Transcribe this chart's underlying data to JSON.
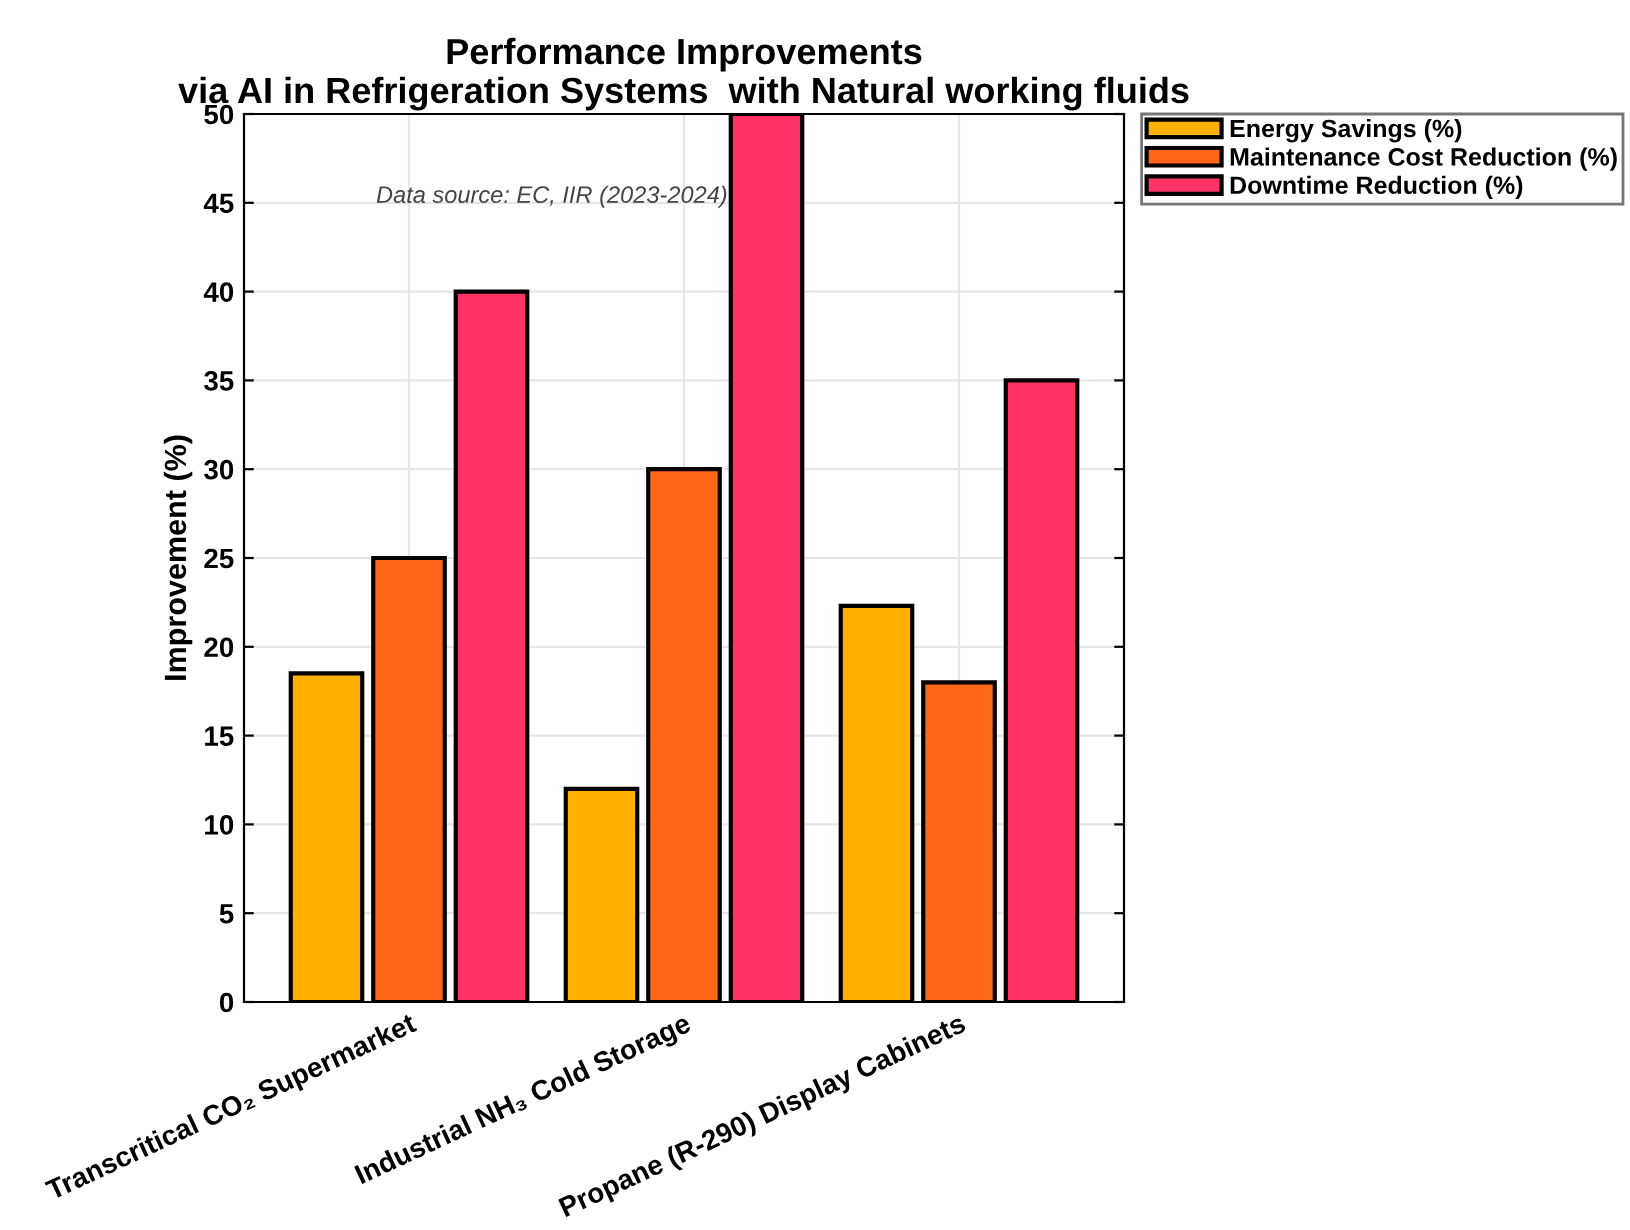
{
  "chart_data": {
    "type": "bar",
    "title": "Performance Improvements\nvia AI in Refrigeration Systems  with Natural working fluids",
    "ylabel": "Improvement (%)",
    "categories": [
      "Transcritical CO₂ Supermarket",
      "Industrial NH₃ Cold Storage",
      "Propane (R-290) Display Cabinets"
    ],
    "series": [
      {
        "name": "Energy Savings (%)",
        "color": "#ffb000",
        "values": [
          18.5,
          12,
          22.3
        ]
      },
      {
        "name": "Maintenance Cost Reduction (%)",
        "color": "#ff6718",
        "values": [
          25,
          30,
          18
        ]
      },
      {
        "name": "Downtime Reduction (%)",
        "color": "#ff3366",
        "values": [
          40,
          50,
          35
        ]
      }
    ],
    "ylim": [
      0,
      50
    ],
    "yticks": [
      0,
      5,
      10,
      15,
      20,
      25,
      30,
      35,
      40,
      45,
      50
    ],
    "grid": true,
    "legend": "top right",
    "annotations": [
      "Data source: EC, IIR (2023-2024)"
    ]
  }
}
